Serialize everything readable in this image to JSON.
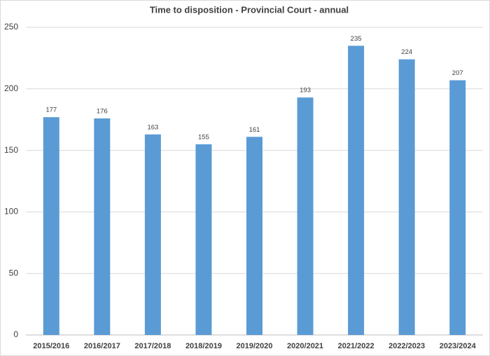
{
  "chart_data": {
    "type": "bar",
    "title": "Time to disposition - Provincial Court - annual",
    "categories": [
      "2015/2016",
      "2016/2017",
      "2017/2018",
      "2018/2019",
      "2019/2020",
      "2020/2021",
      "2021/2022",
      "2022/2023",
      "2023/2024"
    ],
    "values": [
      177,
      176,
      163,
      155,
      161,
      193,
      235,
      224,
      207
    ],
    "color": "#5b9bd5",
    "ylim": [
      0,
      250
    ],
    "yticks": [
      0,
      50,
      100,
      150,
      200,
      250
    ],
    "grid": true
  }
}
